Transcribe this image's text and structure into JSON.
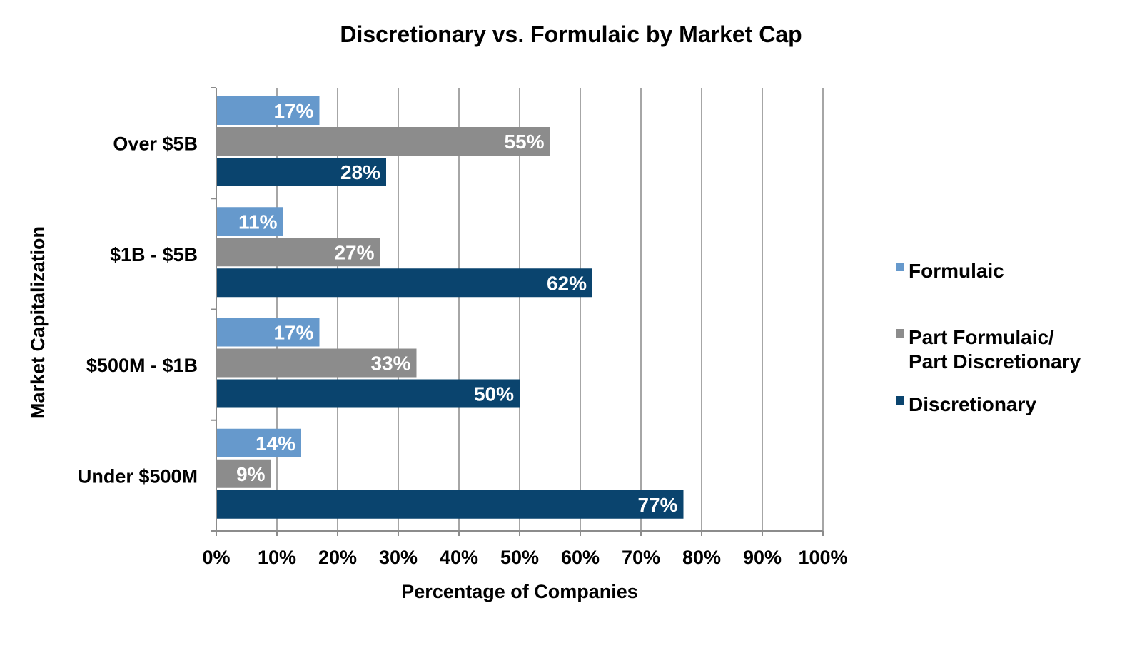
{
  "chart_data": {
    "type": "bar",
    "orientation": "horizontal",
    "title": "Discretionary vs. Formulaic by Market Cap",
    "xlabel": "Percentage of Companies",
    "ylabel": "Market Capitalization",
    "xlim": [
      0,
      100
    ],
    "x_ticks": [
      "0%",
      "10%",
      "20%",
      "30%",
      "40%",
      "50%",
      "60%",
      "70%",
      "80%",
      "90%",
      "100%"
    ],
    "categories": [
      "Over $5B",
      "$1B - $5B",
      "$500M - $1B",
      "Under $500M"
    ],
    "series": [
      {
        "name": "Formulaic",
        "color": "#6699cc",
        "values": [
          17,
          11,
          17,
          14
        ],
        "labels": [
          "17%",
          "11%",
          "17%",
          "14%"
        ]
      },
      {
        "name": "Part Formulaic/ Part Discretionary",
        "legend_lines": [
          "Part Formulaic/",
          "Part Discretionary"
        ],
        "color": "#8c8c8c",
        "values": [
          55,
          27,
          33,
          9
        ],
        "labels": [
          "55%",
          "27%",
          "33%",
          "9%"
        ]
      },
      {
        "name": "Discretionary",
        "color": "#0a446e",
        "values": [
          28,
          62,
          50,
          77
        ],
        "labels": [
          "28%",
          "62%",
          "50%",
          "77%"
        ]
      }
    ],
    "grid": true,
    "legend_position": "right"
  }
}
